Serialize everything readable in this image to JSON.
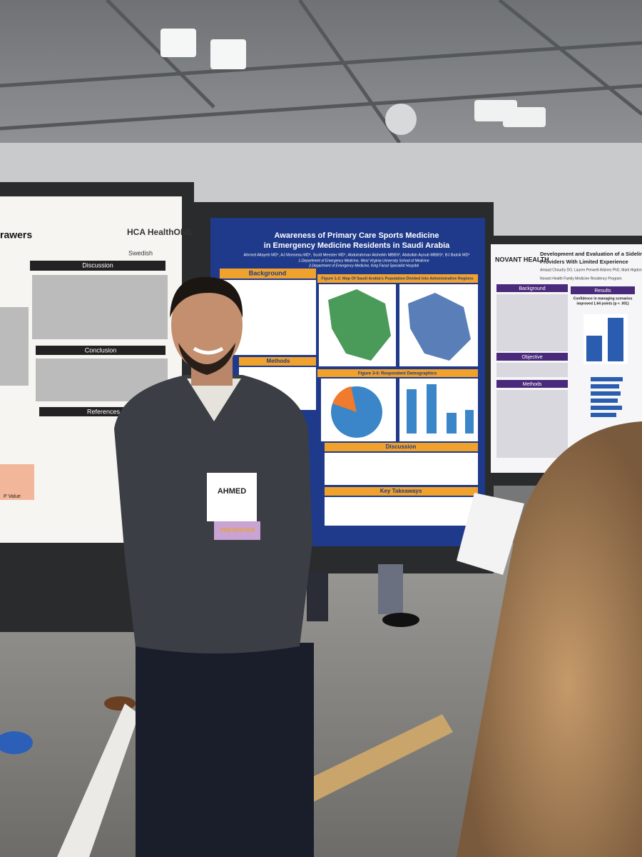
{
  "left_poster": {
    "title_fragment": "rawers",
    "logo": "HCA HealthONE",
    "sublogo": "Swedish",
    "sections": [
      "Discussion",
      "Conclusion",
      "References"
    ],
    "table_header": "P Value"
  },
  "center_poster": {
    "title_lines": [
      "Awareness of Primary Care Sports Medicine",
      "in Emergency Medicine Residents in Saudi Arabia"
    ],
    "authors": "Ahmed Altayeb MD¹, AJ Monseau MD¹, Scott Meester MD¹, Abdulrahman Alsheikh MBBS², Abdullah Ayoub MBBS², BJ Balcik MD¹",
    "affiliations": [
      "1-Department of Emergency Medicine, West Virginia University School of Medicine",
      "2-Department of Emergency Medicine, King Faisal Specialist Hospital"
    ],
    "sections": [
      "Background",
      "Methods",
      "Figure 1-2: Map Of Saudi Arabia's Population Divided into Administrative Regions",
      "Figure 3-4: Respondent Demographics",
      "Discussion",
      "Key Takeaways"
    ]
  },
  "right_poster": {
    "brand": "NOVANT HEALTH",
    "title_lines": [
      "Development and Evaluation of a Sideline Coverage",
      "Providers With Limited Experience"
    ],
    "authors": "Amaad Choudry DO, Lauren Penwell-Waines PhD, Mark Higdon",
    "program": "Novant Health Family Medicine Residency Program",
    "sections": [
      "Background",
      "Results",
      "Objective",
      "Methods"
    ],
    "result_lines": [
      "Confidence in managing scenarios",
      "improved 1.64 points (p < .001)"
    ]
  },
  "badge": {
    "name": "AHMED",
    "ribbon": "PRESENTER"
  }
}
